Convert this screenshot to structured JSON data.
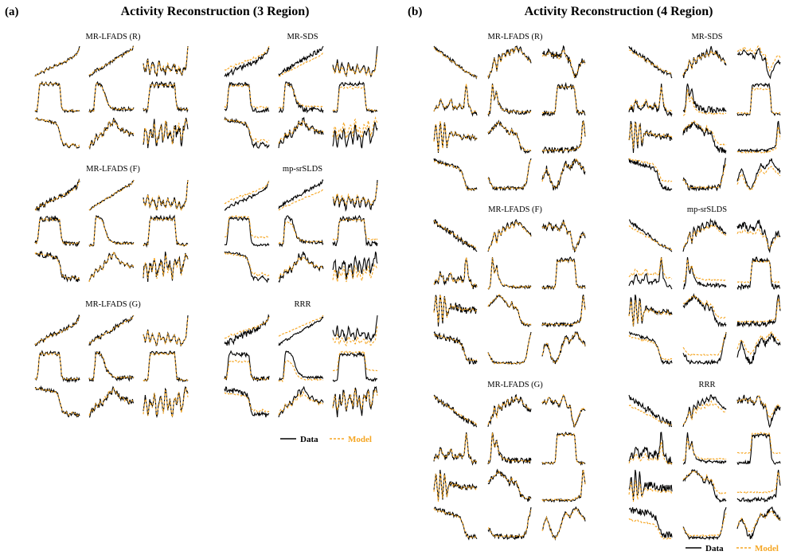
{
  "chart_data": [
    {
      "type": "line",
      "panel_label": "(a)",
      "title": "Activity Reconstruction (3 Region)",
      "grid_rows": 3,
      "grid_cols": 3,
      "xlabel": "",
      "ylabel": "",
      "axes_visible": false,
      "methods": [
        "MR-LFADS (R)",
        "MR-SDS",
        "MR-LFADS (F)",
        "mp-srSLDS",
        "MR-LFADS (G)",
        "RRR"
      ],
      "series": [
        {
          "name": "Data",
          "color": "#000000",
          "style": "solid"
        },
        {
          "name": "Model",
          "color": "#f5a623",
          "style": "dashed"
        }
      ],
      "legend": [
        "Data",
        "Model"
      ],
      "legend_position": "bottom-right",
      "x": [
        0,
        0.05,
        0.1,
        0.15,
        0.2,
        0.25,
        0.3,
        0.35,
        0.4,
        0.45,
        0.5,
        0.55,
        0.6,
        0.65,
        0.7,
        0.75,
        0.8,
        0.85,
        0.9,
        0.95,
        1
      ],
      "traces": [
        [
          0.2,
          0.3,
          0.35,
          0.5,
          0.4,
          0.6,
          0.55,
          0.7,
          0.65,
          0.8,
          0.75,
          0.9,
          0.85,
          1.0,
          0.95,
          1.1,
          1.15,
          1.2,
          1.3,
          1.4,
          1.7
        ],
        [
          0.1,
          0.2,
          0.3,
          0.4,
          0.45,
          0.5,
          0.6,
          0.7,
          0.75,
          0.85,
          0.9,
          1.0,
          1.1,
          1.15,
          1.2,
          1.3,
          1.4,
          1.45,
          1.5,
          1.6,
          1.8
        ],
        [
          1.2,
          0.8,
          1.5,
          0.7,
          1.3,
          1.0,
          0.6,
          1.4,
          0.9,
          1.1,
          0.7,
          1.3,
          0.8,
          1.0,
          1.2,
          0.7,
          1.1,
          0.6,
          0.9,
          1.0,
          2.2
        ],
        [
          0.3,
          0.3,
          1.6,
          1.7,
          1.6,
          1.7,
          1.6,
          1.7,
          1.6,
          1.7,
          1.6,
          1.65,
          0.4,
          0.3,
          0.3,
          0.25,
          0.3,
          0.3,
          0.25,
          0.3,
          0.3
        ],
        [
          0.3,
          0.3,
          0.3,
          1.8,
          1.8,
          1.7,
          1.6,
          1.2,
          0.8,
          0.6,
          0.5,
          0.45,
          0.4,
          0.4,
          0.4,
          0.4,
          0.4,
          0.4,
          0.4,
          0.4,
          0.4
        ],
        [
          0.3,
          0.3,
          0.3,
          1.6,
          1.7,
          1.6,
          1.7,
          1.6,
          1.7,
          1.6,
          1.7,
          1.6,
          1.7,
          1.6,
          1.7,
          0.4,
          0.35,
          0.3,
          0.3,
          0.3,
          0.3
        ],
        [
          1.6,
          1.6,
          1.55,
          1.55,
          1.5,
          1.5,
          1.5,
          1.45,
          1.4,
          1.4,
          1.3,
          1.0,
          0.5,
          0.3,
          0.4,
          0.2,
          0.3,
          0.4,
          0.3,
          0.2,
          0.3
        ],
        [
          0.2,
          0.5,
          0.4,
          0.8,
          0.6,
          0.9,
          0.7,
          1.1,
          1.0,
          1.4,
          1.2,
          1.5,
          1.3,
          1.2,
          1.0,
          1.1,
          0.9,
          1.0,
          0.8,
          0.9,
          0.85
        ],
        [
          0.6,
          1.0,
          0.5,
          0.9,
          0.7,
          1.1,
          0.5,
          0.8,
          1.0,
          0.6,
          1.2,
          0.7,
          0.9,
          0.5,
          1.0,
          0.8,
          1.1,
          0.6,
          0.9,
          1.2,
          1.0
        ]
      ]
    },
    {
      "type": "line",
      "panel_label": "(b)",
      "title": "Activity Reconstruction (4 Region)",
      "grid_rows": 4,
      "grid_cols": 3,
      "xlabel": "",
      "ylabel": "",
      "axes_visible": false,
      "methods": [
        "MR-LFADS (R)",
        "MR-SDS",
        "MR-LFADS (F)",
        "mp-srSLDS",
        "MR-LFADS (G)",
        "RRR"
      ],
      "series": [
        {
          "name": "Data",
          "color": "#000000",
          "style": "solid"
        },
        {
          "name": "Model",
          "color": "#f5a623",
          "style": "dashed"
        }
      ],
      "legend": [
        "Data",
        "Model"
      ],
      "legend_position": "bottom-right",
      "x": [
        0,
        0.05,
        0.1,
        0.15,
        0.2,
        0.25,
        0.3,
        0.35,
        0.4,
        0.45,
        0.5,
        0.55,
        0.6,
        0.65,
        0.7,
        0.75,
        0.8,
        0.85,
        0.9,
        0.95,
        1
      ],
      "traces": [
        [
          1.6,
          1.5,
          1.4,
          1.4,
          1.3,
          1.2,
          1.2,
          1.1,
          1.0,
          1.0,
          0.9,
          0.8,
          0.75,
          0.7,
          0.6,
          0.55,
          0.5,
          0.45,
          0.4,
          0.35,
          0.3
        ],
        [
          0.3,
          0.5,
          0.7,
          1.2,
          0.6,
          1.3,
          1.0,
          1.4,
          1.2,
          1.5,
          1.3,
          1.6,
          1.4,
          1.7,
          1.5,
          1.6,
          1.4,
          1.3,
          1.2,
          1.1,
          1.0
        ],
        [
          1.2,
          1.3,
          1.2,
          1.4,
          1.3,
          1.2,
          1.3,
          1.2,
          1.1,
          1.3,
          1.5,
          1.2,
          1.0,
          1.1,
          0.6,
          0.3,
          0.5,
          0.7,
          0.9,
          1.0,
          0.9
        ],
        [
          0.5,
          0.7,
          0.6,
          1.0,
          0.8,
          0.6,
          0.7,
          0.8,
          1.0,
          0.6,
          0.7,
          0.6,
          0.8,
          0.6,
          0.7,
          1.7,
          0.8,
          0.6,
          0.4,
          0.5,
          0.4
        ],
        [
          0.3,
          0.4,
          1.8,
          1.0,
          1.4,
          0.8,
          0.6,
          0.5,
          0.5,
          0.45,
          0.4,
          0.4,
          0.45,
          0.4,
          0.4,
          0.4,
          0.4,
          0.4,
          0.4,
          0.4,
          0.4
        ],
        [
          0.3,
          0.3,
          0.3,
          0.3,
          0.3,
          0.3,
          0.3,
          1.8,
          1.7,
          1.8,
          1.7,
          1.8,
          1.7,
          1.8,
          1.7,
          1.8,
          0.4,
          0.3,
          0.3,
          0.3,
          0.3
        ],
        [
          0.8,
          1.5,
          0.4,
          1.6,
          0.5,
          1.5,
          0.6,
          1.0,
          1.1,
          1.0,
          1.1,
          1.0,
          1.0,
          0.9,
          1.0,
          0.9,
          1.0,
          0.9,
          1.0,
          0.9,
          0.9
        ],
        [
          1.0,
          1.1,
          1.2,
          1.3,
          1.4,
          1.5,
          1.4,
          1.3,
          1.2,
          1.1,
          0.9,
          1.2,
          0.9,
          1.0,
          0.8,
          0.4,
          0.3,
          0.2,
          0.2,
          0.2,
          0.2
        ],
        [
          0.3,
          0.3,
          0.3,
          0.3,
          0.3,
          0.3,
          0.3,
          0.3,
          0.3,
          0.3,
          0.3,
          0.3,
          0.3,
          0.3,
          0.3,
          0.35,
          0.4,
          0.45,
          0.5,
          1.8,
          1.0
        ],
        [
          1.4,
          1.35,
          1.3,
          1.3,
          1.3,
          1.25,
          1.2,
          1.2,
          1.2,
          1.15,
          1.1,
          1.1,
          1.0,
          0.9,
          0.6,
          0.3,
          0.2,
          0.2,
          0.2,
          0.2,
          0.2
        ],
        [
          0.8,
          0.6,
          0.4,
          0.3,
          0.3,
          0.3,
          0.3,
          0.3,
          0.3,
          0.3,
          0.3,
          0.3,
          0.3,
          0.3,
          0.3,
          0.3,
          0.3,
          0.4,
          0.7,
          1.4,
          1.8
        ],
        [
          0.6,
          0.9,
          1.1,
          0.9,
          0.6,
          0.4,
          0.3,
          0.4,
          0.6,
          0.9,
          1.1,
          1.3,
          1.2,
          1.1,
          1.3,
          1.4,
          1.5,
          1.3,
          1.2,
          1.1,
          1.0
        ]
      ]
    }
  ]
}
